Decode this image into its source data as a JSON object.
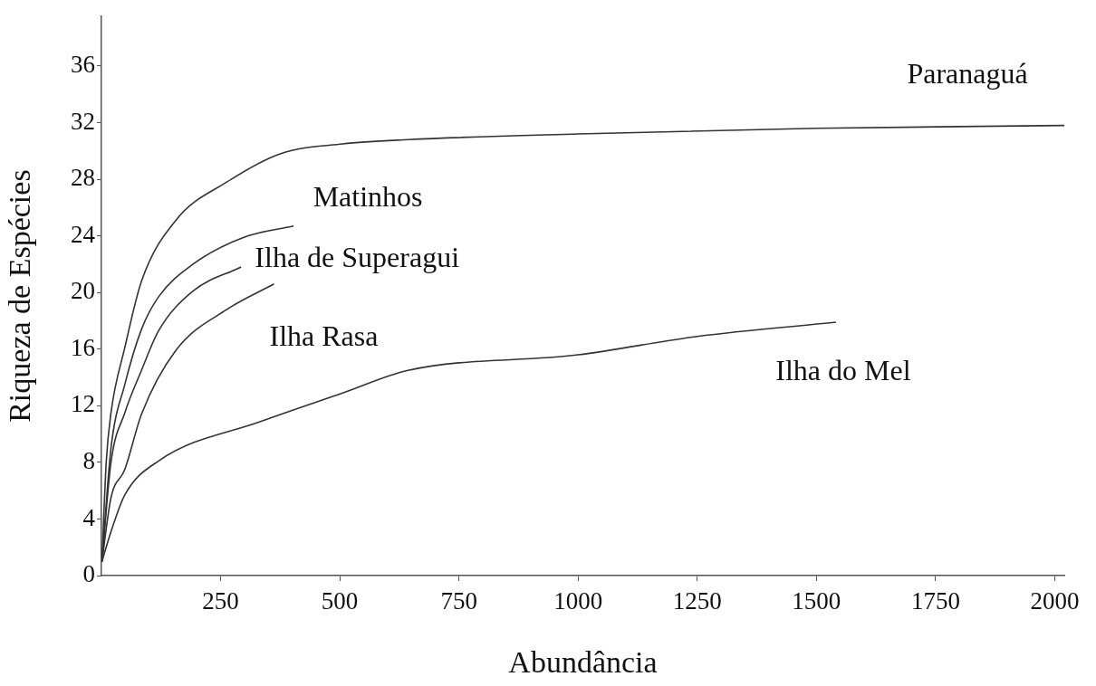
{
  "chart_data": {
    "type": "line",
    "xlabel": "Abundância",
    "ylabel": "Riqueza de Espécies",
    "xlim": [
      0,
      2020
    ],
    "ylim": [
      0,
      39.5
    ],
    "xticks": [
      250,
      500,
      750,
      1000,
      1250,
      1500,
      1750,
      2000
    ],
    "yticks": [
      0,
      4,
      8,
      12,
      16,
      20,
      24,
      28,
      32,
      36
    ],
    "grid": false,
    "legend": false,
    "marker": "none",
    "line_style": "solid",
    "series": [
      {
        "name": "Paranaguá",
        "color": "#333333",
        "x": [
          1,
          10,
          20,
          49,
          84,
          156,
          263,
          375,
          506,
          643,
          1000,
          1500,
          2020
        ],
        "values": [
          1,
          8,
          11.5,
          16.1,
          20.8,
          25.1,
          27.8,
          29.8,
          30.5,
          30.8,
          31.2,
          31.6,
          31.8
        ]
      },
      {
        "name": "Matinhos",
        "color": "#333333",
        "x": [
          1,
          20,
          49,
          84,
          120,
          192,
          299,
          403
        ],
        "values": [
          1,
          9,
          13.5,
          17.4,
          19.7,
          22.0,
          23.9,
          24.7
        ]
      },
      {
        "name": "Ilha de Superagui",
        "color": "#333333",
        "x": [
          1,
          20,
          49,
          84,
          120,
          192,
          293
        ],
        "values": [
          1,
          8,
          11.5,
          14.5,
          17.3,
          20.1,
          21.8
        ]
      },
      {
        "name": "Ilha Rasa",
        "color": "#333333",
        "x": [
          1,
          20,
          49,
          84,
          156,
          263,
          362
        ],
        "values": [
          1,
          5.5,
          7.5,
          11.4,
          15.9,
          18.8,
          20.6
        ]
      },
      {
        "name": "Ilha do Mel",
        "color": "#333333",
        "x": [
          1,
          20,
          49,
          120,
          335,
          506,
          643,
          1000,
          1250,
          1541
        ],
        "values": [
          1,
          3.1,
          5.7,
          8.1,
          10.9,
          12.9,
          14.5,
          15.6,
          16.9,
          17.9
        ]
      }
    ]
  }
}
